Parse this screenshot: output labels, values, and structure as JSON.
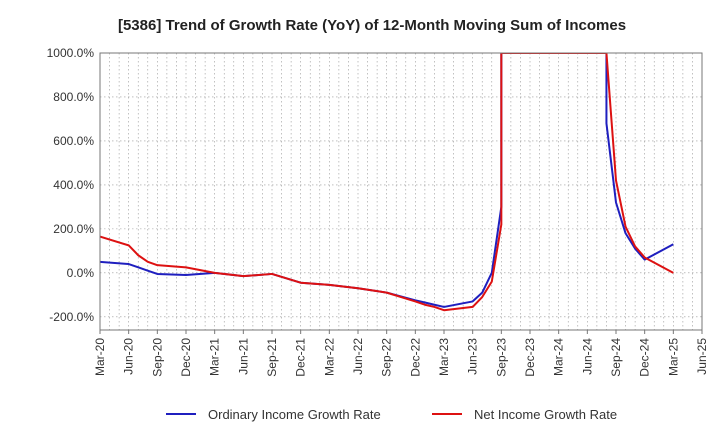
{
  "chart_data": {
    "type": "line",
    "title": "[5386]  Trend of Growth Rate (YoY) of 12-Month Moving Sum of Incomes",
    "xlabel": "",
    "ylabel": "",
    "ylim": [
      -260,
      1000
    ],
    "y_ticks": [
      -200,
      0,
      200,
      400,
      600,
      800,
      1000
    ],
    "y_tick_labels": [
      "-200.0%",
      "0.0%",
      "200.0%",
      "400.0%",
      "600.0%",
      "800.0%",
      "1000.0%"
    ],
    "x_tick_labels": [
      "Mar-20",
      "Jun-20",
      "Sep-20",
      "Dec-20",
      "Mar-21",
      "Jun-21",
      "Sep-21",
      "Dec-21",
      "Mar-22",
      "Jun-22",
      "Sep-22",
      "Dec-22",
      "Mar-23",
      "Jun-23",
      "Sep-23",
      "Dec-23",
      "Mar-24",
      "Jun-24",
      "Sep-24",
      "Dec-24",
      "Mar-25",
      "Jun-25"
    ],
    "x_range": [
      "Mar-20",
      "Jun-25"
    ],
    "grid": true,
    "legend_position": "bottom",
    "series": [
      {
        "name": "Ordinary Income Growth Rate",
        "color": "#1f1fbf",
        "points": [
          [
            "Mar-20",
            50
          ],
          [
            "Jun-20",
            40
          ],
          [
            "Jul-20",
            25
          ],
          [
            "Aug-20",
            10
          ],
          [
            "Sep-20",
            -5
          ],
          [
            "Dec-20",
            -10
          ],
          [
            "Mar-21",
            0
          ],
          [
            "Jun-21",
            -15
          ],
          [
            "Sep-21",
            -5
          ],
          [
            "Dec-21",
            -45
          ],
          [
            "Mar-22",
            -55
          ],
          [
            "Jun-22",
            -70
          ],
          [
            "Sep-22",
            -90
          ],
          [
            "Dec-22",
            -125
          ],
          [
            "Jan-23",
            -135
          ],
          [
            "Feb-23",
            -145
          ],
          [
            "Mar-23",
            -155
          ],
          [
            "Jun-23",
            -130
          ],
          [
            "Jul-23",
            -90
          ],
          [
            "Aug-23",
            0
          ],
          [
            "Sep-23",
            300
          ],
          [
            "Sep-23",
            1000
          ],
          [
            "Aug-24",
            1000
          ],
          [
            "Aug-24",
            680
          ],
          [
            "Sep-24",
            320
          ],
          [
            "Oct-24",
            180
          ],
          [
            "Nov-24",
            110
          ],
          [
            "Dec-24",
            60
          ],
          [
            "Mar-25",
            130
          ]
        ]
      },
      {
        "name": "Net Income Growth Rate",
        "color": "#dd1111",
        "points": [
          [
            "Mar-20",
            165
          ],
          [
            "Jun-20",
            125
          ],
          [
            "Jul-20",
            80
          ],
          [
            "Aug-20",
            50
          ],
          [
            "Sep-20",
            35
          ],
          [
            "Dec-20",
            25
          ],
          [
            "Mar-21",
            0
          ],
          [
            "Jun-21",
            -15
          ],
          [
            "Sep-21",
            -5
          ],
          [
            "Dec-21",
            -45
          ],
          [
            "Mar-22",
            -55
          ],
          [
            "Jun-22",
            -70
          ],
          [
            "Sep-22",
            -90
          ],
          [
            "Dec-22",
            -130
          ],
          [
            "Jan-23",
            -145
          ],
          [
            "Feb-23",
            -155
          ],
          [
            "Mar-23",
            -170
          ],
          [
            "Jun-23",
            -155
          ],
          [
            "Jul-23",
            -110
          ],
          [
            "Aug-23",
            -40
          ],
          [
            "Sep-23",
            220
          ],
          [
            "Sep-23",
            1000
          ],
          [
            "Aug-24",
            1000
          ],
          [
            "Sep-24",
            420
          ],
          [
            "Oct-24",
            210
          ],
          [
            "Nov-24",
            120
          ],
          [
            "Dec-24",
            70
          ],
          [
            "Mar-25",
            0
          ]
        ]
      }
    ]
  }
}
